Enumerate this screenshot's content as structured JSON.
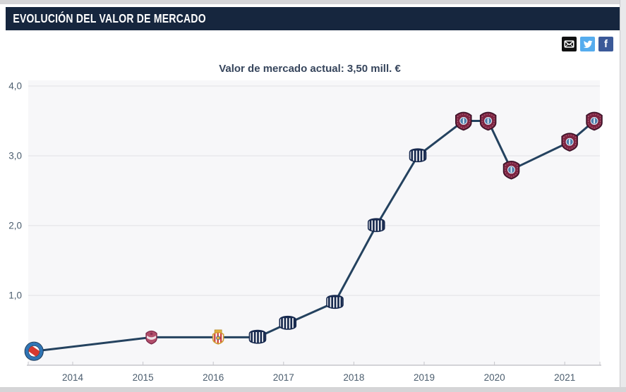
{
  "header": {
    "title": "EVOLUCIÓN DEL VALOR DE MERCADO"
  },
  "share": {
    "facebook_glyph": "f",
    "colors": {
      "email_bg": "#111111",
      "twitter_bg": "#55acee",
      "facebook_bg": "#3b5998"
    }
  },
  "colors": {
    "header_bg": "#16263e",
    "header_text": "#ffffff",
    "page_edge": "#d5d5d7"
  },
  "chart_data": {
    "type": "line",
    "title": "Valor de mercado actual: 3,50 mill. €",
    "current_value": "3,50 mill. €",
    "xlabel": "",
    "ylabel": "",
    "ylim": [
      0,
      4.2
    ],
    "xlim": [
      2013.3,
      2021.6
    ],
    "grid": "horizontal",
    "legend": null,
    "line_color": "#24425f",
    "plot_bg": "#f7f7f9",
    "grid_color": "#e5e5e9",
    "axis_color": "#c6c6cb",
    "axis_text_color": "#4b5d6e",
    "y_ticks": [
      {
        "label": "4,0",
        "value": 4
      },
      {
        "label": "3,0",
        "value": 3
      },
      {
        "label": "2,0",
        "value": 2
      },
      {
        "label": "1,0",
        "value": 1
      }
    ],
    "x_ticks": [
      {
        "label": "2014",
        "value": 2014
      },
      {
        "label": "2015",
        "value": 2015
      },
      {
        "label": "2016",
        "value": 2016
      },
      {
        "label": "2017",
        "value": 2017
      },
      {
        "label": "2018",
        "value": 2018
      },
      {
        "label": "2019",
        "value": 2019
      },
      {
        "label": "2020",
        "value": 2020
      },
      {
        "label": "2021",
        "value": 2021
      }
    ],
    "points": [
      {
        "x": 2013.45,
        "y": 0.2,
        "crest": "argentinos-circle"
      },
      {
        "x": 2015.12,
        "y": 0.4,
        "crest": "crimson-shield"
      },
      {
        "x": 2016.07,
        "y": 0.4,
        "crest": "almeria-shield"
      },
      {
        "x": 2016.63,
        "y": 0.4,
        "crest": "talleres-stripes"
      },
      {
        "x": 2017.06,
        "y": 0.6,
        "crest": "talleres-stripes"
      },
      {
        "x": 2017.73,
        "y": 0.9,
        "crest": "talleres-stripes"
      },
      {
        "x": 2018.32,
        "y": 2.0,
        "crest": "talleres-stripes"
      },
      {
        "x": 2018.91,
        "y": 3.0,
        "crest": "talleres-stripes"
      },
      {
        "x": 2019.56,
        "y": 3.5,
        "crest": "lanus-shield"
      },
      {
        "x": 2019.91,
        "y": 3.5,
        "crest": "lanus-shield"
      },
      {
        "x": 2020.24,
        "y": 2.8,
        "crest": "lanus-shield"
      },
      {
        "x": 2021.07,
        "y": 3.2,
        "crest": "lanus-shield"
      },
      {
        "x": 2021.42,
        "y": 3.5,
        "crest": "lanus-shield"
      }
    ]
  }
}
